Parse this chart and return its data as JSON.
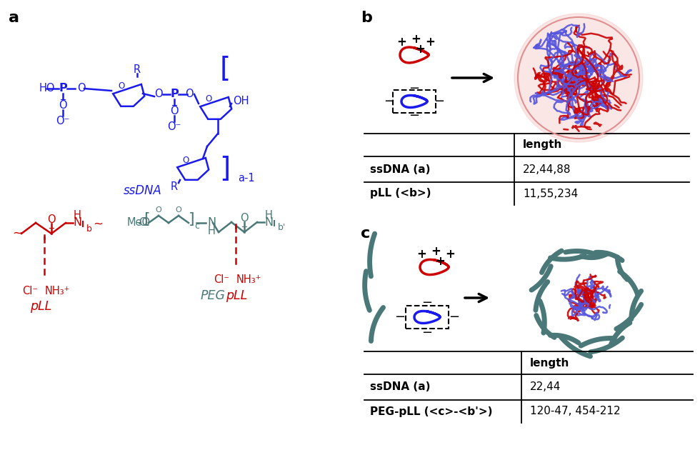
{
  "panel_a_label": "a",
  "panel_b_label": "b",
  "panel_c_label": "c",
  "ssdna_label": "ssDNA",
  "pll_label": "pLL",
  "pegpll_label": "PEGpLL",
  "table_b_header": "length",
  "table_b_row1_label": "ssDNA (a)",
  "table_b_row1_val": "22,44,88",
  "table_b_row2_label": "pLL (<b>)",
  "table_b_row2_val": "11,55,234",
  "table_c_header": "length",
  "table_c_row1_label": "ssDNA (a)",
  "table_c_row1_val": "22,44",
  "table_c_row2_label": "PEG-pLL (<c>-<b'>)",
  "table_c_row2_val": "120-47, 454-212",
  "blue_color": "#1a1aee",
  "red_color": "#cc0000",
  "dark_teal": "#4a7878",
  "black": "#000000",
  "bg_color": "#ffffff",
  "label_fontsize": 16,
  "text_fontsize": 11
}
